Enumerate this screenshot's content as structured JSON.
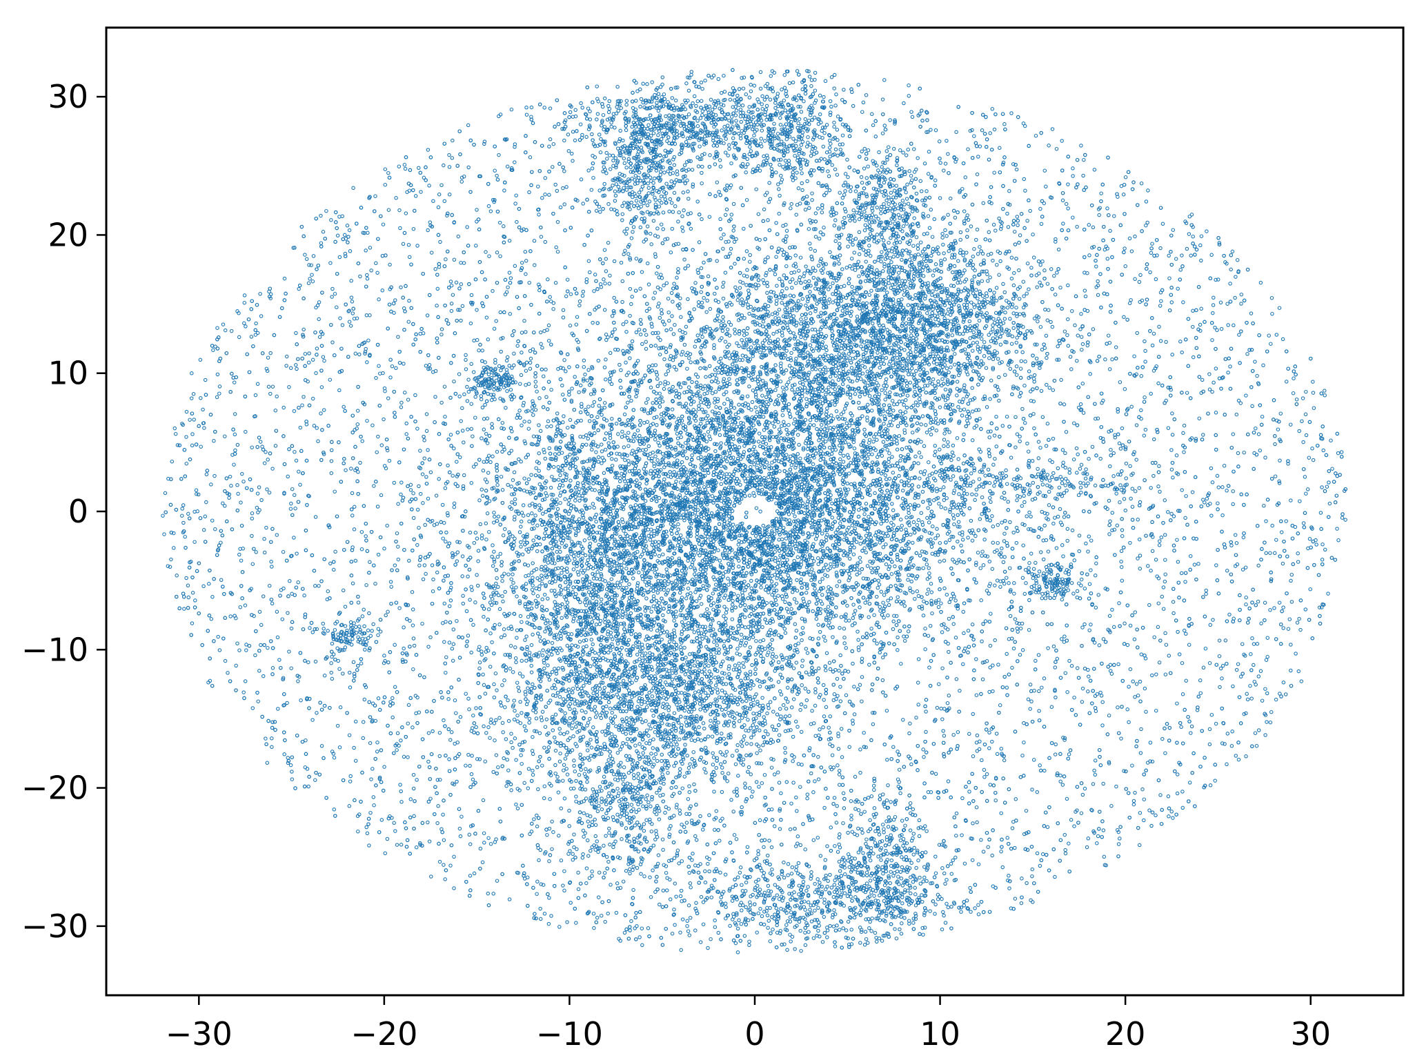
{
  "chart_data": {
    "type": "scatter",
    "title": "",
    "xlabel": "",
    "ylabel": "",
    "xlim": [
      -35,
      35
    ],
    "ylim": [
      -35,
      35
    ],
    "xticks": [
      -30,
      -20,
      -10,
      0,
      10,
      20,
      30
    ],
    "yticks": [
      -30,
      -20,
      -10,
      0,
      10,
      20,
      30
    ],
    "xtick_labels": [
      "−30",
      "−20",
      "−10",
      "0",
      "10",
      "20",
      "30"
    ],
    "ytick_labels": [
      "−30",
      "−20",
      "−10",
      "0",
      "10",
      "20",
      "30"
    ],
    "grid": false,
    "marker": "hollow circle",
    "series": [
      {
        "color": "#1f77b4",
        "description_of_distribution": {
          "outer_ellipse_x_range": [
            -32,
            32
          ],
          "outer_ellipse_y_range": [
            -32,
            32
          ],
          "dense_core_center": [
            0,
            0
          ],
          "empty_hole_center": [
            0,
            0
          ],
          "empty_hole_radius_x": 1.2,
          "empty_hole_radius_y": 1.0
        },
        "clusters": [
          {
            "x": 0,
            "y": 0,
            "sx": 6,
            "sy": 5,
            "weight": 0.3
          },
          {
            "x": 4,
            "y": 12,
            "sx": 5,
            "sy": 4,
            "weight": 0.1
          },
          {
            "x": 9,
            "y": 14,
            "sx": 3,
            "sy": 3,
            "weight": 0.05
          },
          {
            "x": -5,
            "y": -13,
            "sx": 4,
            "sy": 4,
            "weight": 0.09
          },
          {
            "x": -9,
            "y": -4,
            "sx": 3,
            "sy": 6,
            "weight": 0.06
          },
          {
            "x": -3,
            "y": 28,
            "sx": 3,
            "sy": 1.5,
            "weight": 0.025
          },
          {
            "x": -6,
            "y": 25,
            "sx": 1.2,
            "sy": 2.5,
            "weight": 0.02
          },
          {
            "x": 2,
            "y": 27,
            "sx": 1.5,
            "sy": 2,
            "weight": 0.015
          },
          {
            "x": 7,
            "y": 22,
            "sx": 1.2,
            "sy": 2,
            "weight": 0.015
          },
          {
            "x": 2,
            "y": -28,
            "sx": 3,
            "sy": 1.5,
            "weight": 0.02
          },
          {
            "x": 7,
            "y": -26,
            "sx": 1.3,
            "sy": 2.5,
            "weight": 0.02
          },
          {
            "x": -7,
            "y": -22,
            "sx": 1.5,
            "sy": 3,
            "weight": 0.015
          },
          {
            "x": 16,
            "y": -5,
            "sx": 0.8,
            "sy": 0.6,
            "weight": 0.006
          },
          {
            "x": -14,
            "y": 9.5,
            "sx": 0.8,
            "sy": 0.6,
            "weight": 0.006
          },
          {
            "x": -22,
            "y": -9,
            "sx": 0.8,
            "sy": 0.6,
            "weight": 0.004
          },
          {
            "x": 15,
            "y": 2,
            "sx": 4,
            "sy": 1,
            "weight": 0.01
          }
        ]
      }
    ]
  }
}
